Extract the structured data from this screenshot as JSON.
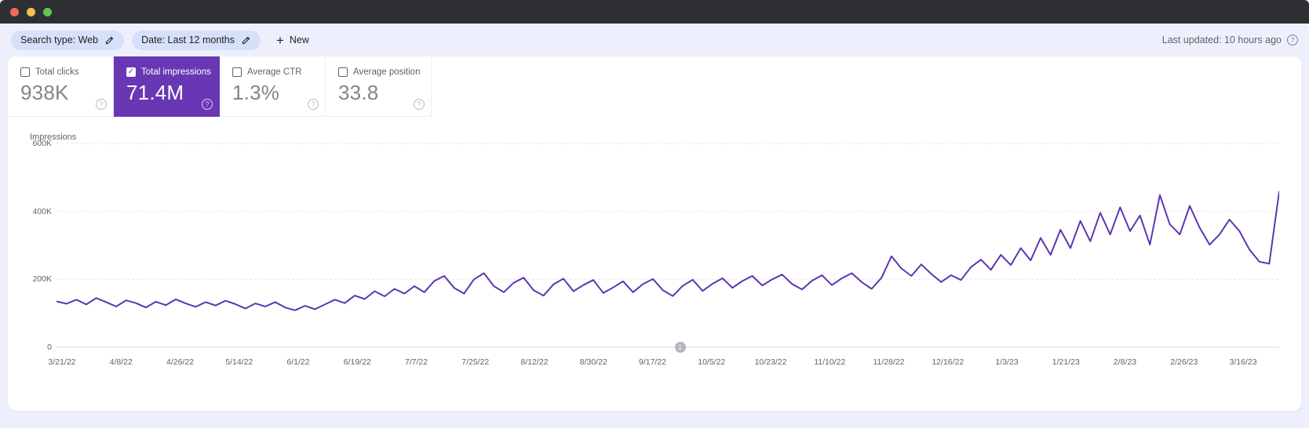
{
  "window": {
    "controls": [
      "close",
      "minimize",
      "zoom"
    ]
  },
  "toolbar": {
    "chips": [
      {
        "label": "Search type: Web"
      },
      {
        "label": "Date: Last 12 months"
      }
    ],
    "new_button_label": "New",
    "last_updated": "Last updated: 10 hours ago"
  },
  "metrics": [
    {
      "label": "Total clicks",
      "value": "938K",
      "checked": false
    },
    {
      "label": "Total impressions",
      "value": "71.4M",
      "checked": true
    },
    {
      "label": "Average CTR",
      "value": "1.3%",
      "checked": false
    },
    {
      "label": "Average position",
      "value": "33.8",
      "checked": false
    }
  ],
  "colors": {
    "accent_purple": "#6937b4",
    "line_purple": "#5e35b1",
    "page_background": "#edf0fc",
    "chip_background": "#d7e0f9",
    "gridline": "#e4e7ef",
    "baseline": "#dadce0",
    "muted_text": "#5f6368"
  },
  "chart_data": {
    "type": "line",
    "title": "Impressions",
    "legend_position": "none",
    "grid": "horizontal-dashed",
    "ylabel": "Impressions",
    "ylim": [
      0,
      600000
    ],
    "y_ticks": [
      {
        "label": "600K",
        "value": 600000
      },
      {
        "label": "400K",
        "value": 400000
      },
      {
        "label": "200K",
        "value": 200000
      },
      {
        "label": "0",
        "value": 0
      }
    ],
    "x_tick_labels": [
      "3/21/22",
      "4/8/22",
      "4/26/22",
      "5/14/22",
      "6/1/22",
      "6/19/22",
      "7/7/22",
      "7/25/22",
      "8/12/22",
      "8/30/22",
      "9/17/22",
      "10/5/22",
      "10/23/22",
      "11/10/22",
      "11/28/22",
      "12/16/22",
      "1/3/23",
      "1/21/23",
      "2/8/23",
      "2/26/23",
      "3/16/23"
    ],
    "annotation": {
      "label": "1",
      "near_x_label": "9/17/22",
      "x_fraction": 0.51
    },
    "series": [
      {
        "name": "Total impressions",
        "values_unit": "thousands",
        "values": [
          135,
          128,
          140,
          126,
          145,
          133,
          120,
          138,
          130,
          117,
          134,
          124,
          141,
          129,
          119,
          133,
          123,
          137,
          127,
          114,
          129,
          120,
          133,
          117,
          109,
          122,
          112,
          126,
          140,
          130,
          152,
          142,
          165,
          150,
          172,
          158,
          180,
          162,
          195,
          210,
          175,
          158,
          200,
          218,
          180,
          162,
          190,
          205,
          168,
          152,
          185,
          202,
          165,
          183,
          198,
          160,
          176,
          194,
          162,
          186,
          201,
          168,
          151,
          181,
          199,
          166,
          187,
          203,
          175,
          195,
          210,
          182,
          200,
          214,
          186,
          170,
          196,
          212,
          183,
          203,
          218,
          192,
          172,
          205,
          268,
          232,
          210,
          244,
          216,
          192,
          212,
          198,
          236,
          258,
          228,
          272,
          242,
          292,
          256,
          322,
          272,
          346,
          292,
          372,
          312,
          396,
          332,
          412,
          342,
          388,
          302,
          448,
          362,
          332,
          416,
          352,
          302,
          332,
          376,
          342,
          288,
          252,
          246,
          458
        ]
      }
    ]
  }
}
